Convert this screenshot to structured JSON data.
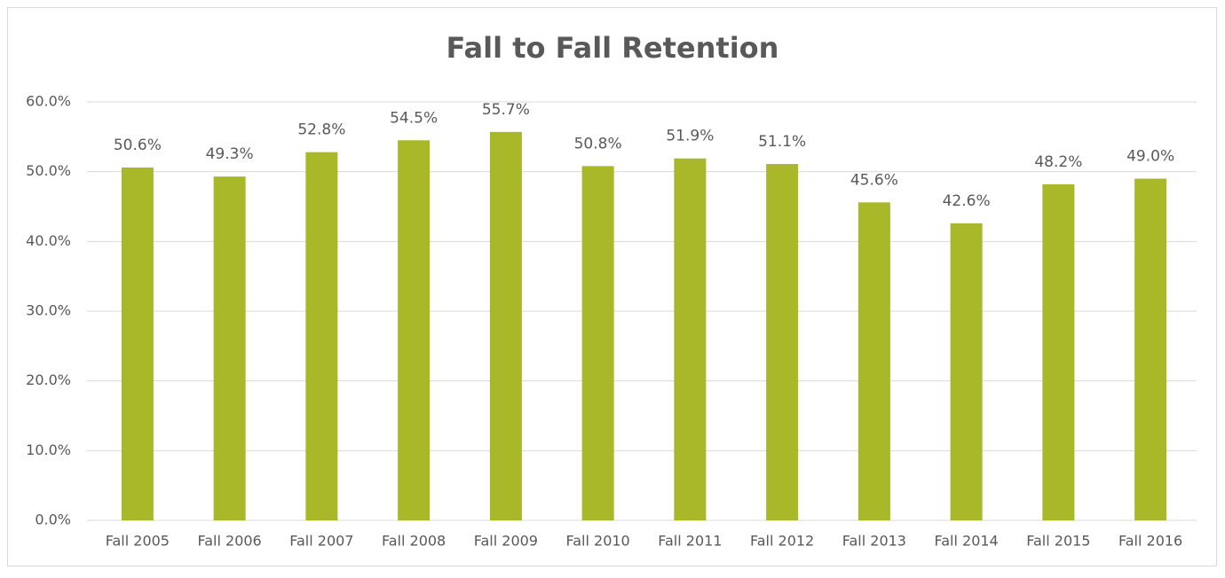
{
  "chart_data": {
    "type": "bar",
    "title": "Fall to Fall Retention",
    "categories": [
      "Fall 2005",
      "Fall 2006",
      "Fall 2007",
      "Fall 2008",
      "Fall 2009",
      "Fall 2010",
      "Fall 2011",
      "Fall 2012",
      "Fall 2013",
      "Fall 2014",
      "Fall 2015",
      "Fall 2016"
    ],
    "values": [
      50.6,
      49.3,
      52.8,
      54.5,
      55.7,
      50.8,
      51.9,
      51.1,
      45.6,
      42.6,
      48.2,
      49.0
    ],
    "value_labels": [
      "50.6%",
      "49.3%",
      "52.8%",
      "54.5%",
      "55.7%",
      "50.8%",
      "51.9%",
      "51.1%",
      "45.6%",
      "42.6%",
      "48.2%",
      "49.0%"
    ],
    "color": "#a9b829",
    "ylim": [
      0,
      60
    ],
    "yticks": [
      {
        "value": 0,
        "label": "0.0%"
      },
      {
        "value": 10,
        "label": "10.0%"
      },
      {
        "value": 20,
        "label": "20.0%"
      },
      {
        "value": 30,
        "label": "30.0%"
      },
      {
        "value": 40,
        "label": "40.0%"
      },
      {
        "value": 50,
        "label": "50.0%"
      },
      {
        "value": 60,
        "label": "60.0%"
      }
    ],
    "grid": true
  }
}
